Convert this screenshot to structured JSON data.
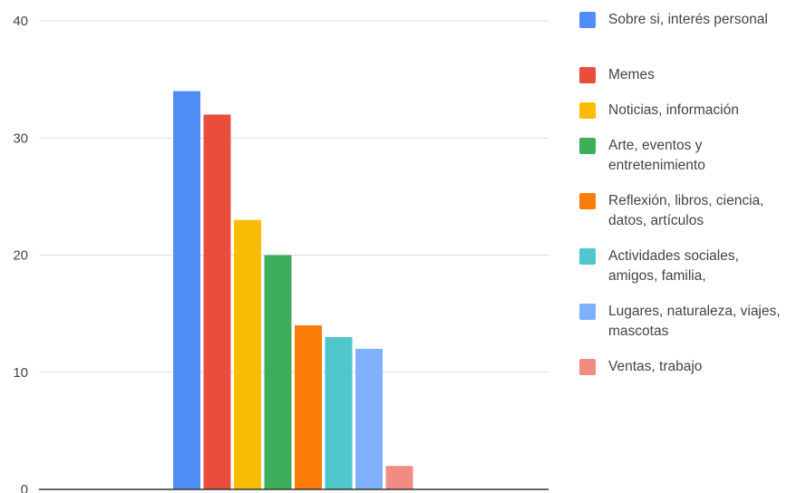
{
  "chart_data": {
    "type": "bar",
    "ylim": [
      0,
      40
    ],
    "yticks": [
      "0",
      "10",
      "20",
      "30",
      "40"
    ],
    "grid": true,
    "legend_position": "right",
    "series": [
      {
        "name": "Sobre si, interés personal",
        "value": 34,
        "color": "#4f8df5"
      },
      {
        "name": "Memes",
        "value": 32,
        "color": "#ea4d3d"
      },
      {
        "name": "Noticias, información",
        "value": 23,
        "color": "#fbbc04"
      },
      {
        "name": "Arte, eventos y entretenimiento",
        "value": 20,
        "color": "#3dae5c"
      },
      {
        "name": "Reflexión, libros, ciencia, datos, artículos",
        "value": 14,
        "color": "#fb7c08"
      },
      {
        "name": "Actividades sociales, amigos, familia,",
        "value": 13,
        "color": "#4dc6cc"
      },
      {
        "name": "Lugares, naturaleza, viajes, mascotas",
        "value": 12,
        "color": "#7fb0fb"
      },
      {
        "name": "Ventas, trabajo",
        "value": 2,
        "color": "#f28b82"
      }
    ]
  }
}
